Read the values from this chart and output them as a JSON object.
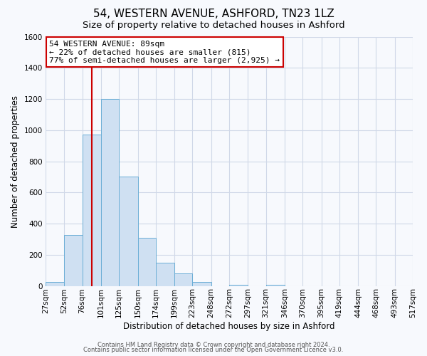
{
  "title": "54, WESTERN AVENUE, ASHFORD, TN23 1LZ",
  "subtitle": "Size of property relative to detached houses in Ashford",
  "xlabel": "Distribution of detached houses by size in Ashford",
  "ylabel": "Number of detached properties",
  "bar_values": [
    25,
    325,
    970,
    1200,
    700,
    310,
    150,
    80,
    25,
    0,
    5,
    0,
    5,
    0,
    0,
    0,
    0,
    0,
    0,
    0
  ],
  "bin_edges": [
    27,
    52,
    76,
    101,
    125,
    150,
    174,
    199,
    223,
    248,
    272,
    297,
    321,
    346,
    370,
    395,
    419,
    444,
    468,
    493,
    517
  ],
  "tick_labels": [
    "27sqm",
    "52sqm",
    "76sqm",
    "101sqm",
    "125sqm",
    "150sqm",
    "174sqm",
    "199sqm",
    "223sqm",
    "248sqm",
    "272sqm",
    "297sqm",
    "321sqm",
    "346sqm",
    "370sqm",
    "395sqm",
    "419sqm",
    "444sqm",
    "468sqm",
    "493sqm",
    "517sqm"
  ],
  "bar_color": "#cfe0f2",
  "bar_edge_color": "#6baed6",
  "ylim": [
    0,
    1600
  ],
  "yticks": [
    0,
    200,
    400,
    600,
    800,
    1000,
    1200,
    1400,
    1600
  ],
  "vline_x": 89,
  "vline_color": "#cc0000",
  "annotation_title": "54 WESTERN AVENUE: 89sqm",
  "annotation_line1": "← 22% of detached houses are smaller (815)",
  "annotation_line2": "77% of semi-detached houses are larger (2,925) →",
  "annotation_box_color": "#cc0000",
  "footer1": "Contains HM Land Registry data © Crown copyright and database right 2024.",
  "footer2": "Contains public sector information licensed under the Open Government Licence v3.0.",
  "plot_bg_color": "#f7f9fd",
  "fig_bg_color": "#f7f9fd",
  "grid_color": "#d0d8e8",
  "title_fontsize": 11,
  "subtitle_fontsize": 9.5,
  "axis_label_fontsize": 8.5,
  "tick_fontsize": 7.5,
  "footer_fontsize": 6
}
